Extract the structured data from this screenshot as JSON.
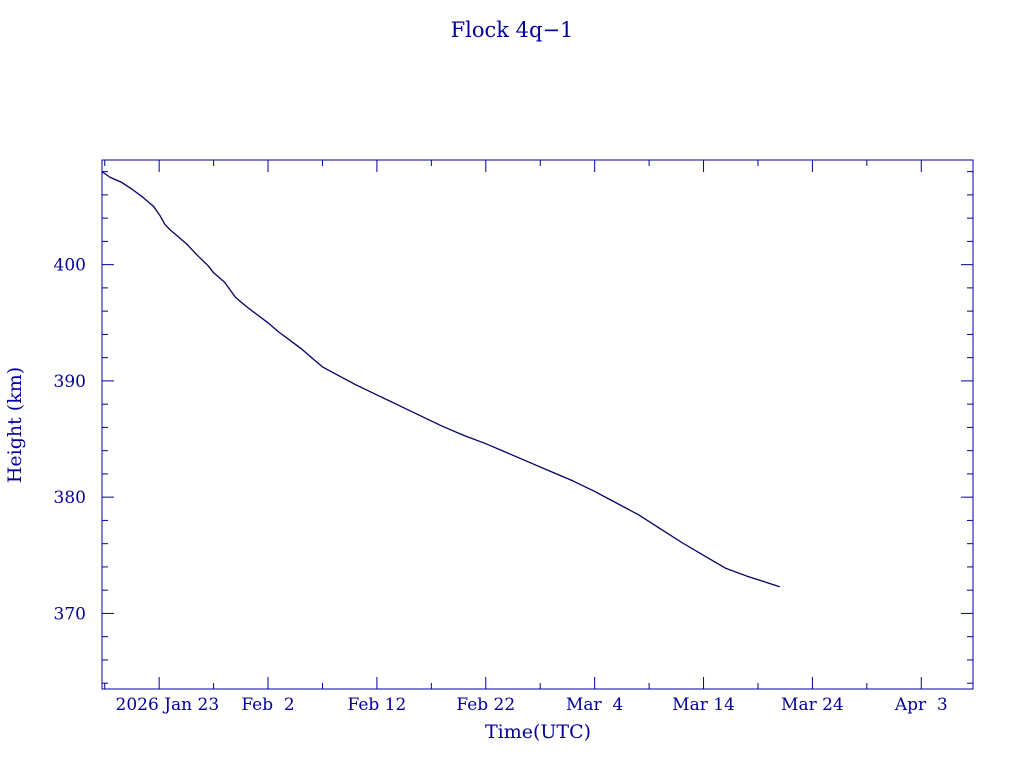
{
  "chart_data": {
    "type": "line",
    "title": "Flock 4q−1",
    "xlabel": "Time(UTC)",
    "ylabel": "Height (km)",
    "x_ticks": [
      {
        "date": "2026-01-23",
        "label": "2026 Jan 23"
      },
      {
        "date": "2026-02-02",
        "label": "Feb  2"
      },
      {
        "date": "2026-02-12",
        "label": "Feb 12"
      },
      {
        "date": "2026-02-22",
        "label": "Feb 22"
      },
      {
        "date": "2026-03-04",
        "label": "Mar  4"
      },
      {
        "date": "2026-03-14",
        "label": "Mar 14"
      },
      {
        "date": "2026-03-24",
        "label": "Mar 24"
      },
      {
        "date": "2026-04-03",
        "label": "Apr  3"
      }
    ],
    "xlim": [
      "2026-01-17 18:00",
      "2026-04-07 18:00"
    ],
    "ylim": [
      363.5,
      409
    ],
    "y_ticks": [
      370,
      380,
      390,
      400
    ],
    "y_minor_step": 2,
    "x_minor_days": 5,
    "grid": false,
    "series": [
      {
        "color": "#000066",
        "x": [
          "2026-01-17 18:00",
          "2026-01-18 12:00",
          "2026-01-19 12:00",
          "2026-01-20 12:00",
          "2026-01-21 12:00",
          "2026-01-22 12:00",
          "2026-01-23 02:00",
          "2026-01-23 12:00",
          "2026-01-24 00:00",
          "2026-01-24 12:00",
          "2026-01-25 12:00",
          "2026-01-26 12:00",
          "2026-01-27 12:00",
          "2026-01-28 00:00",
          "2026-01-29 00:00",
          "2026-01-30 00:00",
          "2026-01-31 00:00",
          "2026-02-01 00:00",
          "2026-02-02 00:00",
          "2026-02-03 00:00",
          "2026-02-04 00:00",
          "2026-02-05 00:00",
          "2026-02-06 00:00",
          "2026-02-07 00:00",
          "2026-02-08 00:00",
          "2026-02-10 00:00",
          "2026-02-12 00:00",
          "2026-02-14 00:00",
          "2026-02-16 00:00",
          "2026-02-18 00:00",
          "2026-02-20 00:00",
          "2026-02-22 00:00",
          "2026-02-24 00:00",
          "2026-02-26 00:00",
          "2026-02-28 00:00",
          "2026-03-02 00:00",
          "2026-03-04 00:00",
          "2026-03-06 00:00",
          "2026-03-08 00:00",
          "2026-03-10 00:00",
          "2026-03-12 00:00",
          "2026-03-14 00:00",
          "2026-03-16 00:00",
          "2026-03-18 00:00",
          "2026-03-20 00:00",
          "2026-03-21 00:00"
        ],
        "y": [
          408.0,
          407.5,
          407.1,
          406.5,
          405.8,
          405.0,
          404.2,
          403.5,
          403.0,
          402.6,
          401.8,
          400.8,
          399.9,
          399.3,
          398.5,
          397.2,
          396.4,
          395.7,
          395.0,
          394.2,
          393.5,
          392.8,
          392.0,
          391.2,
          390.7,
          389.7,
          388.8,
          387.9,
          387.0,
          386.1,
          385.3,
          384.6,
          383.8,
          383.0,
          382.2,
          381.4,
          380.5,
          379.5,
          378.5,
          377.3,
          376.1,
          375.0,
          373.9,
          373.2,
          372.6,
          372.3
        ]
      }
    ]
  }
}
